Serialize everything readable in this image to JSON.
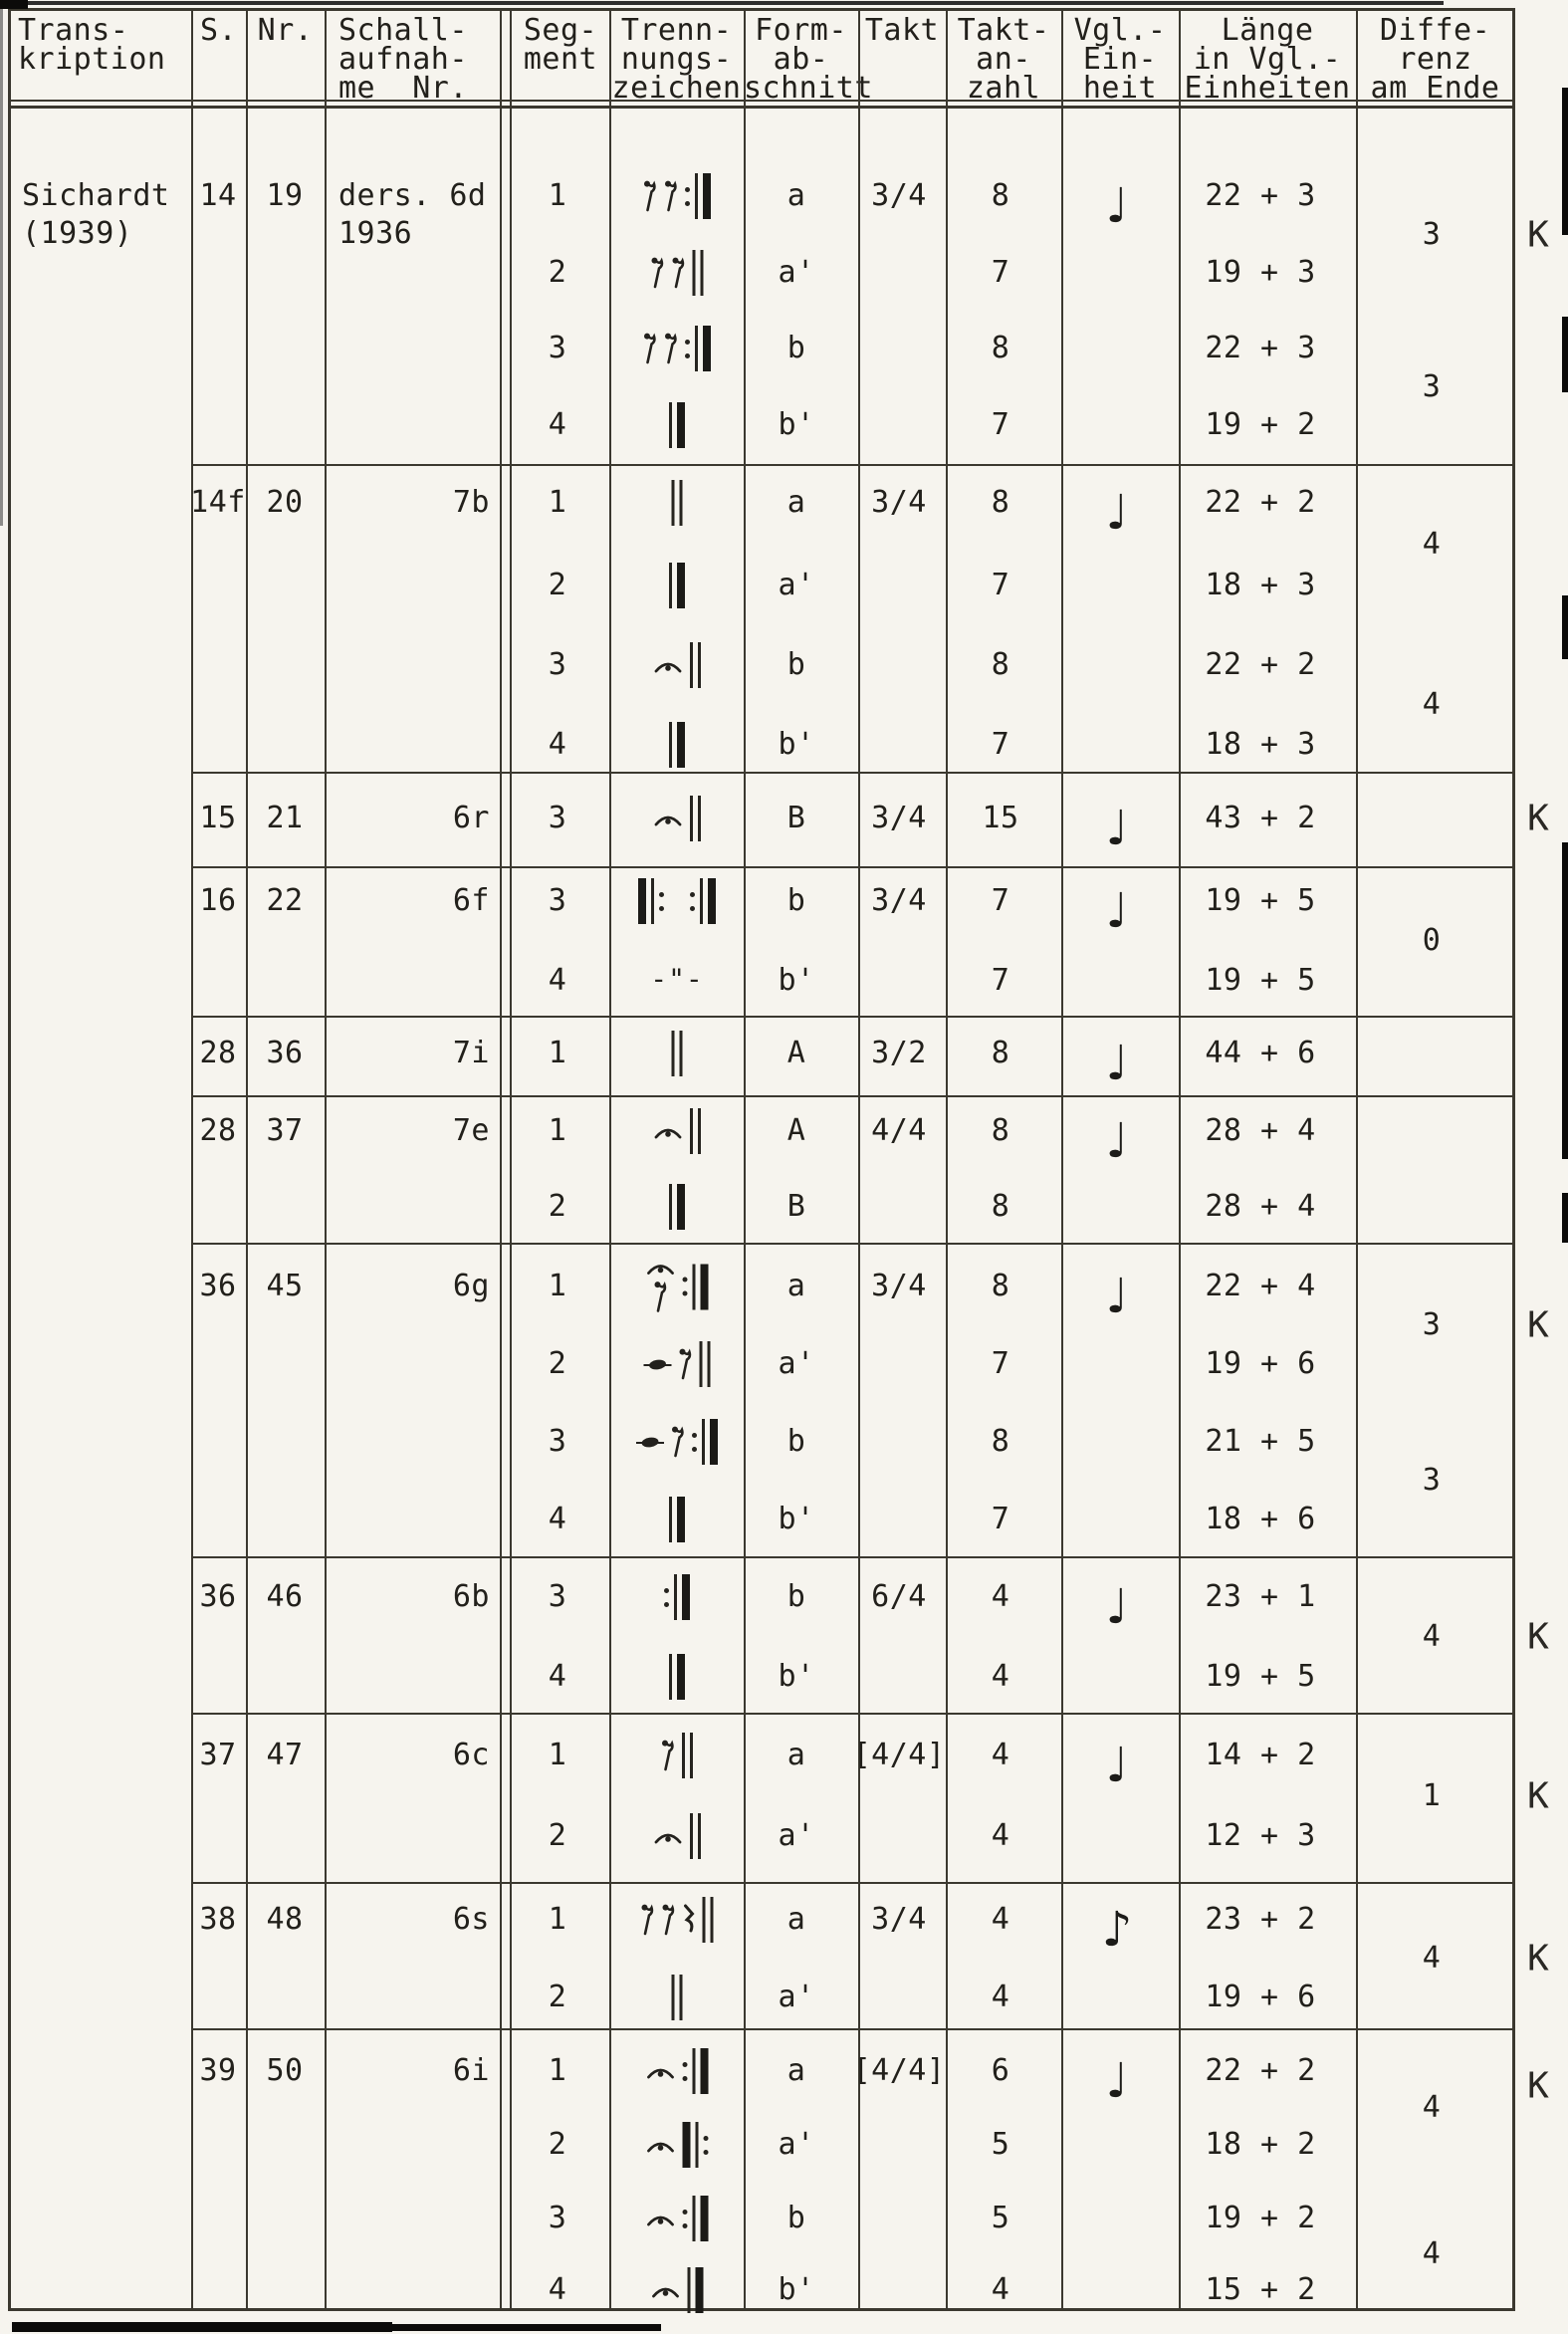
{
  "header": {
    "columns": [
      {
        "id": "transkription",
        "lines": [
          "Trans-",
          "kription"
        ]
      },
      {
        "id": "s",
        "lines": [
          "S."
        ]
      },
      {
        "id": "nr",
        "lines": [
          "Nr."
        ]
      },
      {
        "id": "schallaufnahme",
        "lines": [
          "Schall-",
          "aufnah-",
          "me  Nr."
        ]
      },
      {
        "id": "segment",
        "lines": [
          "Seg-",
          "ment"
        ]
      },
      {
        "id": "trennungszeichen",
        "lines": [
          "Trenn-",
          "nungs-",
          "zeichen"
        ]
      },
      {
        "id": "formabschnitt",
        "lines": [
          "Form-",
          "ab-",
          "schnitt"
        ]
      },
      {
        "id": "takt",
        "lines": [
          "Takt"
        ]
      },
      {
        "id": "taktanzahl",
        "lines": [
          "Takt-",
          "an-",
          "zahl"
        ]
      },
      {
        "id": "vgl_einheit",
        "lines": [
          "Vgl.-",
          "Ein-",
          "heit"
        ]
      },
      {
        "id": "laenge",
        "lines": [
          "Länge",
          "in Vgl.-",
          "Einheiten"
        ]
      },
      {
        "id": "differenz",
        "lines": [
          "Diffe-",
          "renz",
          "am Ende"
        ]
      }
    ]
  },
  "transcription": {
    "lines": [
      "Sichardt",
      "(1939)"
    ]
  },
  "symbols": {
    "k_label": "K",
    "ditto": "-\"-",
    "quarter_note": "♩",
    "eighth_note": "♪"
  },
  "blocks": [
    {
      "s": "14",
      "nr": "19",
      "schall": [
        "ders. 6d",
        "1936"
      ],
      "takt": "3/4",
      "unit": "quarter_note",
      "k": true,
      "rows": [
        {
          "seg": "1",
          "sign": [
            "erest",
            "erest",
            "rpt-end"
          ],
          "form": "a",
          "anzahl": "8",
          "laenge": "22 + 3"
        },
        {
          "seg": "2",
          "sign": [
            "erest",
            "erest",
            "dbl"
          ],
          "form": "a'",
          "anzahl": "7",
          "laenge": "19 + 3"
        },
        {
          "seg": "3",
          "sign": [
            "erest",
            "erest",
            "rpt-end"
          ],
          "form": "b",
          "anzahl": "8",
          "laenge": "22 + 3"
        },
        {
          "seg": "4",
          "sign": [
            "end"
          ],
          "form": "b'",
          "anzahl": "7",
          "laenge": "19 + 2"
        }
      ],
      "diffs": [
        {
          "value": "3",
          "between": [
            0,
            1
          ]
        },
        {
          "value": "3",
          "between": [
            2,
            3
          ]
        }
      ]
    },
    {
      "s": "14f",
      "nr": "20",
      "schall": [
        "7b"
      ],
      "takt": "3/4",
      "unit": "quarter_note",
      "k": false,
      "rows": [
        {
          "seg": "1",
          "sign": [
            "dbl"
          ],
          "form": "a",
          "anzahl": "8",
          "laenge": "22 + 2"
        },
        {
          "seg": "2",
          "sign": [
            "end"
          ],
          "form": "a'",
          "anzahl": "7",
          "laenge": "18 + 3"
        },
        {
          "seg": "3",
          "sign": [
            "fermata",
            "dbl"
          ],
          "form": "b",
          "anzahl": "8",
          "laenge": "22 + 2"
        },
        {
          "seg": "4",
          "sign": [
            "end"
          ],
          "form": "b'",
          "anzahl": "7",
          "laenge": "18 + 3"
        }
      ],
      "diffs": [
        {
          "value": "4",
          "between": [
            0,
            1
          ]
        },
        {
          "value": "4",
          "between": [
            2,
            3
          ]
        }
      ]
    },
    {
      "s": "15",
      "nr": "21",
      "schall": [
        "6r"
      ],
      "takt": "3/4",
      "unit": "quarter_note",
      "k": true,
      "rows": [
        {
          "seg": "3",
          "sign": [
            "fermata",
            "dbl"
          ],
          "form": "B",
          "anzahl": "15",
          "laenge": "43 + 2"
        }
      ],
      "diffs": []
    },
    {
      "s": "16",
      "nr": "22",
      "schall": [
        "6f"
      ],
      "takt": "3/4",
      "unit": "quarter_note",
      "k": false,
      "rows": [
        {
          "seg": "3",
          "sign": [
            "rpt-start",
            "gap",
            "rpt-end"
          ],
          "form": "b",
          "anzahl": "7",
          "laenge": "19 + 5"
        },
        {
          "seg": "4",
          "sign": [
            "ditto"
          ],
          "form": "b'",
          "anzahl": "7",
          "laenge": "19 + 5"
        }
      ],
      "diffs": [
        {
          "value": "0",
          "between": [
            0,
            1
          ]
        }
      ]
    },
    {
      "s": "28",
      "nr": "36",
      "schall": [
        "7i"
      ],
      "takt": "3/2",
      "unit": "quarter_note",
      "k": false,
      "rows": [
        {
          "seg": "1",
          "sign": [
            "dbl"
          ],
          "form": "A",
          "anzahl": "8",
          "laenge": "44 + 6"
        }
      ],
      "diffs": []
    },
    {
      "s": "28",
      "nr": "37",
      "schall": [
        "7e"
      ],
      "takt": "4/4",
      "unit": "quarter_note",
      "k": false,
      "rows": [
        {
          "seg": "1",
          "sign": [
            "fermata",
            "dbl"
          ],
          "form": "A",
          "anzahl": "8",
          "laenge": "28 + 4"
        },
        {
          "seg": "2",
          "sign": [
            "end"
          ],
          "form": "B",
          "anzahl": "8",
          "laenge": "28 + 4"
        }
      ],
      "diffs": []
    },
    {
      "s": "36",
      "nr": "45",
      "schall": [
        "6g"
      ],
      "takt": "3/4",
      "unit": "quarter_note",
      "k": true,
      "rows": [
        {
          "seg": "1",
          "sign": [
            "ferest",
            "rpt-end"
          ],
          "form": "a",
          "anzahl": "8",
          "laenge": "22 + 4"
        },
        {
          "seg": "2",
          "sign": [
            "notehead",
            "erest",
            "dbl"
          ],
          "form": "a'",
          "anzahl": "7",
          "laenge": "19 + 6"
        },
        {
          "seg": "3",
          "sign": [
            "notehead",
            "erest",
            "rpt-end"
          ],
          "form": "b",
          "anzahl": "8",
          "laenge": "21 + 5"
        },
        {
          "seg": "4",
          "sign": [
            "end"
          ],
          "form": "b'",
          "anzahl": "7",
          "laenge": "18 + 6"
        }
      ],
      "diffs": [
        {
          "value": "3",
          "between": [
            0,
            1
          ]
        },
        {
          "value": "3",
          "between": [
            2,
            3
          ]
        }
      ]
    },
    {
      "s": "36",
      "nr": "46",
      "schall": [
        "6b"
      ],
      "takt": "6/4",
      "unit": "quarter_note",
      "k": true,
      "rows": [
        {
          "seg": "3",
          "sign": [
            "rpt-end"
          ],
          "form": "b",
          "anzahl": "4",
          "laenge": "23 + 1"
        },
        {
          "seg": "4",
          "sign": [
            "end"
          ],
          "form": "b'",
          "anzahl": "4",
          "laenge": "19 + 5"
        }
      ],
      "diffs": [
        {
          "value": "4",
          "between": [
            0,
            1
          ]
        }
      ]
    },
    {
      "s": "37",
      "nr": "47",
      "schall": [
        "6c"
      ],
      "takt": "[4/4]",
      "unit": "quarter_note",
      "k": true,
      "rows": [
        {
          "seg": "1",
          "sign": [
            "erest",
            "dbl"
          ],
          "form": "a",
          "anzahl": "4",
          "laenge": "14 + 2"
        },
        {
          "seg": "2",
          "sign": [
            "fermata",
            "dbl"
          ],
          "form": "a'",
          "anzahl": "4",
          "laenge": "12 + 3"
        }
      ],
      "diffs": [
        {
          "value": "1",
          "between": [
            0,
            1
          ]
        }
      ]
    },
    {
      "s": "38",
      "nr": "48",
      "schall": [
        "6s"
      ],
      "takt": "3/4",
      "unit": "eighth_note",
      "k": true,
      "rows": [
        {
          "seg": "1",
          "sign": [
            "erest",
            "erest",
            "qrest",
            "dbl"
          ],
          "form": "a",
          "anzahl": "4",
          "laenge": "23 + 2"
        },
        {
          "seg": "2",
          "sign": [
            "dbl"
          ],
          "form": "a'",
          "anzahl": "4",
          "laenge": "19 + 6"
        }
      ],
      "diffs": [
        {
          "value": "4",
          "between": [
            0,
            1
          ]
        }
      ]
    },
    {
      "s": "39",
      "nr": "50",
      "schall": [
        "6i"
      ],
      "takt": "[4/4]",
      "unit": "quarter_note",
      "k": true,
      "rows": [
        {
          "seg": "1",
          "sign": [
            "fermata",
            "rpt-end"
          ],
          "form": "a",
          "anzahl": "6",
          "laenge": "22 + 2"
        },
        {
          "seg": "2",
          "sign": [
            "fermata",
            "rpt-start"
          ],
          "form": "a'",
          "anzahl": "5",
          "laenge": "18 + 2"
        },
        {
          "seg": "3",
          "sign": [
            "fermata",
            "rpt-end"
          ],
          "form": "b",
          "anzahl": "5",
          "laenge": "19 + 2"
        },
        {
          "seg": "4",
          "sign": [
            "fermata",
            "end"
          ],
          "form": "b'",
          "anzahl": "4",
          "laenge": "15 + 2"
        }
      ],
      "diffs": [
        {
          "value": "4",
          "between": [
            0,
            1
          ]
        },
        {
          "value": "4",
          "between": [
            2,
            3
          ]
        }
      ]
    }
  ]
}
